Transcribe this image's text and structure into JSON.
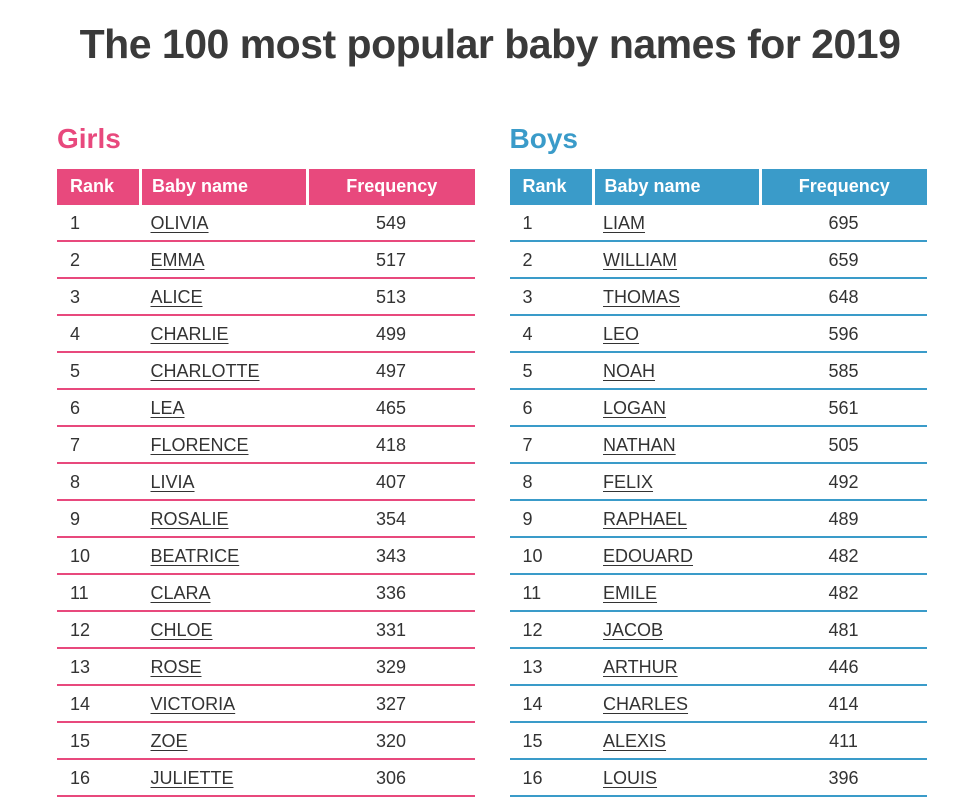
{
  "page_title": "The 100 most popular baby names for 2019",
  "colors": {
    "girls_accent": "#e8497d",
    "boys_accent": "#3a9bc9",
    "title_text": "#3a3a3a",
    "body_text": "#333333",
    "header_text": "#ffffff"
  },
  "columns": {
    "rank": "Rank",
    "name": "Baby name",
    "frequency": "Frequency"
  },
  "girls": {
    "heading": "Girls",
    "rows": [
      {
        "rank": "1",
        "name": "OLIVIA",
        "frequency": "549"
      },
      {
        "rank": "2",
        "name": "EMMA",
        "frequency": "517"
      },
      {
        "rank": "3",
        "name": "ALICE",
        "frequency": "513"
      },
      {
        "rank": "4",
        "name": "CHARLIE",
        "frequency": "499"
      },
      {
        "rank": "5",
        "name": "CHARLOTTE",
        "frequency": "497"
      },
      {
        "rank": "6",
        "name": "LEA",
        "frequency": "465"
      },
      {
        "rank": "7",
        "name": "FLORENCE",
        "frequency": "418"
      },
      {
        "rank": "8",
        "name": "LIVIA",
        "frequency": "407"
      },
      {
        "rank": "9",
        "name": "ROSALIE",
        "frequency": "354"
      },
      {
        "rank": "10",
        "name": "BEATRICE",
        "frequency": "343"
      },
      {
        "rank": "11",
        "name": "CLARA",
        "frequency": "336"
      },
      {
        "rank": "12",
        "name": "CHLOE",
        "frequency": "331"
      },
      {
        "rank": "13",
        "name": "ROSE",
        "frequency": "329"
      },
      {
        "rank": "14",
        "name": "VICTORIA",
        "frequency": "327"
      },
      {
        "rank": "15",
        "name": "ZOE",
        "frequency": "320"
      },
      {
        "rank": "16",
        "name": "JULIETTE",
        "frequency": "306"
      }
    ]
  },
  "boys": {
    "heading": "Boys",
    "rows": [
      {
        "rank": "1",
        "name": "LIAM",
        "frequency": "695"
      },
      {
        "rank": "2",
        "name": "WILLIAM",
        "frequency": "659"
      },
      {
        "rank": "3",
        "name": "THOMAS",
        "frequency": "648"
      },
      {
        "rank": "4",
        "name": "LEO",
        "frequency": "596"
      },
      {
        "rank": "5",
        "name": "NOAH",
        "frequency": "585"
      },
      {
        "rank": "6",
        "name": "LOGAN",
        "frequency": "561"
      },
      {
        "rank": "7",
        "name": "NATHAN",
        "frequency": "505"
      },
      {
        "rank": "8",
        "name": "FELIX",
        "frequency": "492"
      },
      {
        "rank": "9",
        "name": "RAPHAEL",
        "frequency": "489"
      },
      {
        "rank": "10",
        "name": "EDOUARD",
        "frequency": "482"
      },
      {
        "rank": "11",
        "name": "EMILE",
        "frequency": "482"
      },
      {
        "rank": "12",
        "name": "JACOB",
        "frequency": "481"
      },
      {
        "rank": "13",
        "name": "ARTHUR",
        "frequency": "446"
      },
      {
        "rank": "14",
        "name": "CHARLES",
        "frequency": "414"
      },
      {
        "rank": "15",
        "name": "ALEXIS",
        "frequency": "411"
      },
      {
        "rank": "16",
        "name": "LOUIS",
        "frequency": "396"
      }
    ]
  }
}
